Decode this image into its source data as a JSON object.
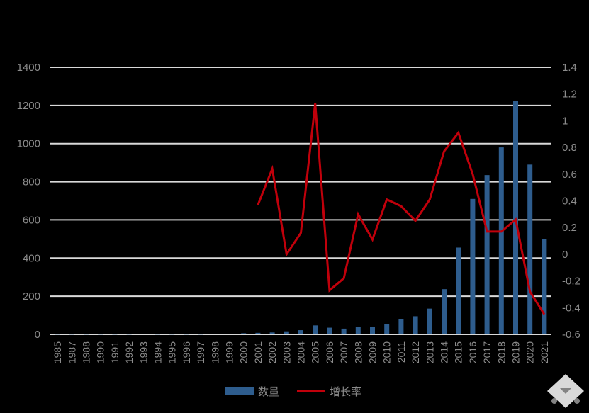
{
  "chart_data": {
    "type": "bar",
    "categories": [
      "1985",
      "1987",
      "1988",
      "1990",
      "1991",
      "1992",
      "1993",
      "1994",
      "1995",
      "1996",
      "1997",
      "1998",
      "1999",
      "2000",
      "2001",
      "2002",
      "2003",
      "2004",
      "2005",
      "2006",
      "2007",
      "2008",
      "2009",
      "2010",
      "2011",
      "2012",
      "2013",
      "2014",
      "2015",
      "2016",
      "2017",
      "2018",
      "2019",
      "2020",
      "2021"
    ],
    "series": [
      {
        "name": "数量",
        "type": "bar",
        "axis": "left",
        "color": "#2e5d8e",
        "values": [
          1,
          1,
          1,
          1,
          1,
          1,
          2,
          1,
          1,
          1,
          1,
          2,
          3,
          6,
          8,
          10,
          16,
          22,
          47,
          35,
          30,
          38,
          40,
          55,
          80,
          95,
          135,
          237,
          455,
          710,
          835,
          980,
          1225,
          890,
          500
        ]
      },
      {
        "name": "增长率",
        "type": "line",
        "axis": "right",
        "color": "#c0000b",
        "values": [
          null,
          null,
          null,
          null,
          null,
          null,
          null,
          null,
          null,
          null,
          null,
          null,
          null,
          null,
          0.37,
          0.64,
          0,
          0.16,
          1.13,
          -0.27,
          -0.18,
          0.3,
          0.11,
          0.41,
          0.36,
          0.25,
          0.41,
          0.77,
          0.91,
          0.6,
          0.17,
          0.17,
          0.26,
          -0.28,
          -0.45
        ]
      }
    ],
    "y_left": {
      "ylim": [
        0,
        1400
      ],
      "ticks": [
        "0",
        "200",
        "400",
        "600",
        "800",
        "1000",
        "1200",
        "1400"
      ]
    },
    "y_right": {
      "ylim": [
        -0.6,
        1.4
      ],
      "ticks": [
        "-0.6",
        "-0.4",
        "-0.2",
        "0",
        "0.2",
        "0.4",
        "0.6",
        "0.8",
        "1",
        "1.2",
        "1.4"
      ]
    },
    "grid": true,
    "legend_position": "bottom"
  }
}
